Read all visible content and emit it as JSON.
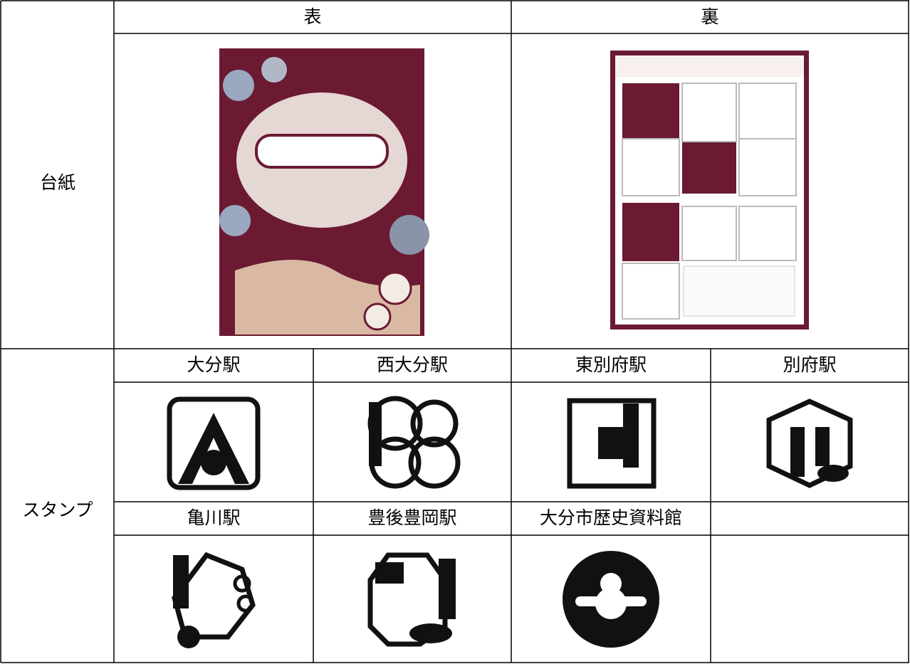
{
  "header": {
    "front": "表",
    "back": "裏"
  },
  "rows": [
    {
      "label": "台紙"
    },
    {
      "label": "スタンプ",
      "stamps": [
        "大分駅",
        "西大分駅",
        "東別府駅",
        "別府駅",
        "亀川駅",
        "豊後豊岡駅",
        "大分市歴史資料館"
      ]
    }
  ]
}
